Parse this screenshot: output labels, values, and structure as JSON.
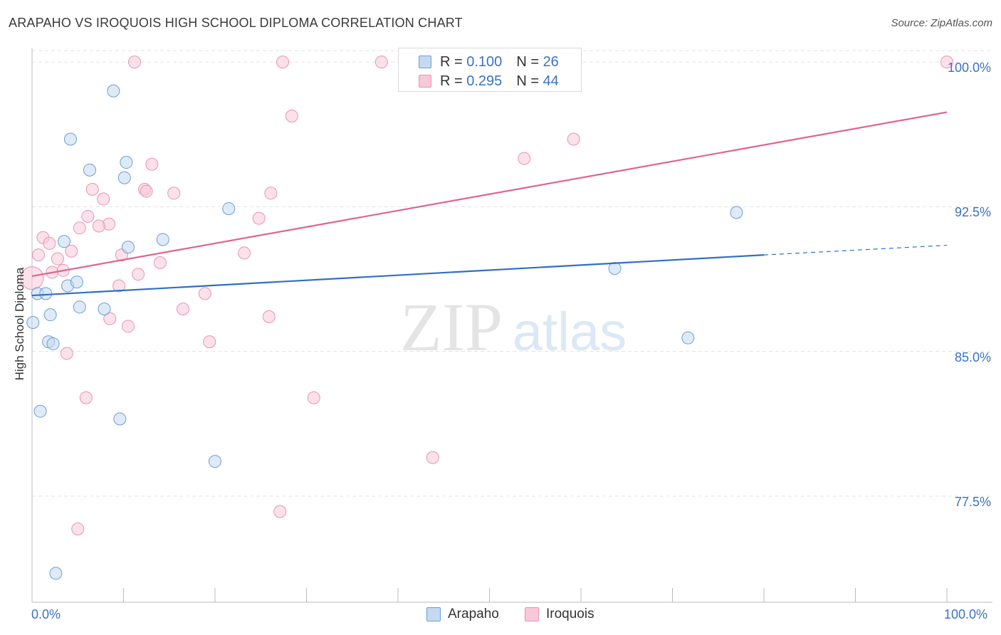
{
  "chart_data": {
    "type": "scatter",
    "title": "ARAPAHO VS IROQUOIS HIGH SCHOOL DIPLOMA CORRELATION CHART",
    "source": "Source: ZipAtlas.com",
    "ylabel": "High School Diploma",
    "xlabel": "",
    "xlim": [
      0,
      100
    ],
    "ylim": [
      72.0,
      101.0
    ],
    "x_tick_labels": [
      "0.0%",
      "100.0%"
    ],
    "y_ticks": [
      77.5,
      85.0,
      92.5,
      100.0
    ],
    "y_tick_labels": [
      "77.5%",
      "85.0%",
      "92.5%",
      "100.0%"
    ],
    "watermark": {
      "zip": "ZIP",
      "atlas": "atlas"
    },
    "legend": [
      {
        "r_label": "R =",
        "r_value": "0.100",
        "n_label": "N =",
        "n_value": "26"
      },
      {
        "r_label": "R =",
        "r_value": "0.295",
        "n_label": "N =",
        "n_value": "44"
      }
    ],
    "series": [
      {
        "name": "Arapaho",
        "color": "#6a9fd8",
        "fill": "#c5d9f1",
        "line_color": "#2f6fc6",
        "trend": {
          "x0": 0,
          "y0": 87.9,
          "x1": 80,
          "y1": 90.0,
          "x_dash_end": 100,
          "y_dash_end": 90.5
        },
        "points": [
          [
            8.9,
            98.5
          ],
          [
            4.2,
            96.0
          ],
          [
            6.3,
            94.4
          ],
          [
            10.3,
            94.8
          ],
          [
            10.1,
            94.0
          ],
          [
            21.5,
            92.4
          ],
          [
            14.3,
            90.8
          ],
          [
            3.5,
            90.7
          ],
          [
            10.5,
            90.4
          ],
          [
            0.6,
            88.0
          ],
          [
            1.5,
            88.0
          ],
          [
            3.9,
            88.4
          ],
          [
            4.9,
            88.6
          ],
          [
            5.2,
            87.3
          ],
          [
            7.9,
            87.2
          ],
          [
            0.1,
            86.5
          ],
          [
            2.0,
            86.9
          ],
          [
            1.8,
            85.5
          ],
          [
            2.3,
            85.4
          ],
          [
            0.9,
            81.9
          ],
          [
            9.6,
            81.5
          ],
          [
            20.0,
            79.3
          ],
          [
            2.6,
            73.5
          ],
          [
            63.7,
            89.3
          ],
          [
            71.7,
            85.7
          ],
          [
            77.0,
            92.2
          ]
        ]
      },
      {
        "name": "Iroquois",
        "color": "#e994b0",
        "fill": "#f7c9d8",
        "line_color": "#e0648f",
        "trend": {
          "x0": 0,
          "y0": 88.9,
          "x1": 100,
          "y1": 97.4
        },
        "points": [
          [
            11.2,
            100.0
          ],
          [
            27.4,
            100.0
          ],
          [
            38.2,
            100.0
          ],
          [
            100.0,
            100.0
          ],
          [
            28.4,
            97.2
          ],
          [
            59.2,
            96.0
          ],
          [
            53.8,
            95.0
          ],
          [
            13.1,
            94.7
          ],
          [
            6.6,
            93.4
          ],
          [
            12.3,
            93.4
          ],
          [
            12.5,
            93.3
          ],
          [
            15.5,
            93.2
          ],
          [
            26.1,
            93.2
          ],
          [
            7.8,
            92.9
          ],
          [
            6.1,
            92.0
          ],
          [
            8.4,
            91.6
          ],
          [
            7.3,
            91.5
          ],
          [
            5.2,
            91.4
          ],
          [
            24.8,
            91.9
          ],
          [
            1.2,
            90.9
          ],
          [
            1.9,
            90.6
          ],
          [
            4.3,
            90.2
          ],
          [
            0.7,
            90.0
          ],
          [
            9.8,
            90.0
          ],
          [
            23.2,
            90.1
          ],
          [
            2.8,
            89.8
          ],
          [
            14.0,
            89.6
          ],
          [
            2.2,
            89.1
          ],
          [
            3.4,
            89.2
          ],
          [
            11.6,
            89.0
          ],
          [
            0.0,
            88.8
          ],
          [
            9.5,
            88.4
          ],
          [
            18.9,
            88.0
          ],
          [
            16.5,
            87.2
          ],
          [
            8.5,
            86.7
          ],
          [
            25.9,
            86.8
          ],
          [
            10.5,
            86.3
          ],
          [
            19.4,
            85.5
          ],
          [
            3.8,
            84.9
          ],
          [
            5.9,
            82.6
          ],
          [
            30.8,
            82.6
          ],
          [
            43.8,
            79.5
          ],
          [
            27.1,
            76.7
          ],
          [
            5.0,
            75.8
          ]
        ]
      }
    ]
  }
}
